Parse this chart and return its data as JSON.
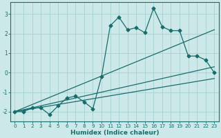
{
  "xlabel": "Humidex (Indice chaleur)",
  "ylabel": "",
  "xlim": [
    -0.5,
    23.5
  ],
  "ylim": [
    -2.5,
    3.6
  ],
  "background_color": "#cce8e8",
  "grid_color": "#aad4d4",
  "line_color": "#1a6b6b",
  "x_ticks": [
    0,
    1,
    2,
    3,
    4,
    5,
    6,
    7,
    8,
    9,
    10,
    11,
    12,
    13,
    14,
    15,
    16,
    17,
    18,
    19,
    20,
    21,
    22,
    23
  ],
  "y_ticks": [
    -2,
    -1,
    0,
    1,
    2,
    3
  ],
  "series1_x": [
    0,
    1,
    2,
    3,
    4,
    5,
    6,
    7,
    8,
    9,
    10,
    11,
    12,
    13,
    14,
    15,
    16,
    17,
    18,
    19,
    20,
    21,
    22,
    23
  ],
  "series1_y": [
    -2.0,
    -2.0,
    -1.8,
    -1.8,
    -2.15,
    -1.7,
    -1.3,
    -1.2,
    -1.5,
    -1.85,
    -0.2,
    2.4,
    2.85,
    2.2,
    2.3,
    2.05,
    3.3,
    2.35,
    2.15,
    2.15,
    0.85,
    0.85,
    0.65,
    0.0
  ],
  "series2_x": [
    0,
    23
  ],
  "series2_y": [
    -2.0,
    2.2
  ],
  "series3_x": [
    0,
    23
  ],
  "series3_y": [
    -2.0,
    0.3
  ],
  "series4_x": [
    0,
    23
  ],
  "series4_y": [
    -2.0,
    -0.3
  ]
}
